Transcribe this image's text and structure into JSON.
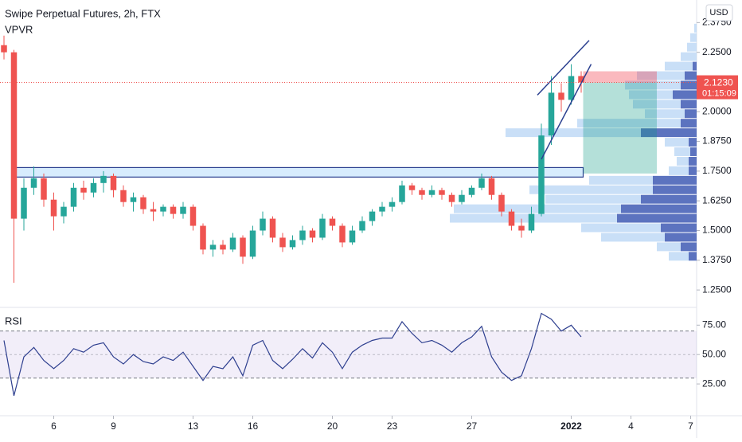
{
  "chart_data": [
    {
      "type": "candlestick",
      "title": "Swipe Perpetual Futures, 2h, FTX",
      "subtitle": "VPVR",
      "currency": "USD",
      "up_color": "#26a69a",
      "down_color": "#ef5350",
      "x": [
        3.5,
        4,
        4.5,
        5,
        5.5,
        6,
        6.5,
        7,
        7.5,
        8,
        8.5,
        9,
        9.5,
        10,
        10.5,
        11,
        11.5,
        12,
        12.5,
        13,
        13.5,
        14,
        14.5,
        15,
        15.5,
        16,
        16.5,
        17,
        17.5,
        18,
        18.5,
        19,
        19.5,
        20,
        20.5,
        21,
        21.5,
        22,
        22.5,
        23,
        23.5,
        24,
        24.5,
        25,
        25.5,
        26,
        26.5,
        27,
        27.5,
        28,
        28.5,
        29,
        29.5,
        30,
        30.5,
        31,
        31.5,
        32,
        32.5
      ],
      "candles": [
        [
          2.28,
          2.32,
          2.22,
          2.25
        ],
        [
          2.25,
          2.26,
          1.28,
          1.55
        ],
        [
          1.55,
          1.72,
          1.5,
          1.68
        ],
        [
          1.68,
          1.77,
          1.65,
          1.72
        ],
        [
          1.72,
          1.74,
          1.6,
          1.63
        ],
        [
          1.63,
          1.66,
          1.5,
          1.56
        ],
        [
          1.56,
          1.62,
          1.53,
          1.6
        ],
        [
          1.6,
          1.7,
          1.58,
          1.68
        ],
        [
          1.68,
          1.71,
          1.63,
          1.66
        ],
        [
          1.66,
          1.72,
          1.64,
          1.7
        ],
        [
          1.7,
          1.75,
          1.66,
          1.73
        ],
        [
          1.73,
          1.74,
          1.64,
          1.67
        ],
        [
          1.67,
          1.69,
          1.6,
          1.62
        ],
        [
          1.62,
          1.66,
          1.58,
          1.64
        ],
        [
          1.64,
          1.65,
          1.57,
          1.59
        ],
        [
          1.59,
          1.62,
          1.54,
          1.58
        ],
        [
          1.58,
          1.61,
          1.56,
          1.6
        ],
        [
          1.6,
          1.61,
          1.55,
          1.57
        ],
        [
          1.57,
          1.62,
          1.55,
          1.6
        ],
        [
          1.6,
          1.61,
          1.5,
          1.52
        ],
        [
          1.52,
          1.53,
          1.4,
          1.42
        ],
        [
          1.42,
          1.46,
          1.39,
          1.44
        ],
        [
          1.44,
          1.46,
          1.4,
          1.42
        ],
        [
          1.42,
          1.49,
          1.41,
          1.47
        ],
        [
          1.47,
          1.48,
          1.36,
          1.39
        ],
        [
          1.39,
          1.52,
          1.38,
          1.5
        ],
        [
          1.5,
          1.58,
          1.48,
          1.55
        ],
        [
          1.55,
          1.56,
          1.45,
          1.47
        ],
        [
          1.47,
          1.49,
          1.41,
          1.43
        ],
        [
          1.43,
          1.48,
          1.42,
          1.46
        ],
        [
          1.46,
          1.52,
          1.44,
          1.5
        ],
        [
          1.5,
          1.51,
          1.45,
          1.47
        ],
        [
          1.47,
          1.57,
          1.46,
          1.55
        ],
        [
          1.55,
          1.56,
          1.5,
          1.52
        ],
        [
          1.52,
          1.53,
          1.43,
          1.45
        ],
        [
          1.45,
          1.52,
          1.44,
          1.5
        ],
        [
          1.5,
          1.56,
          1.49,
          1.54
        ],
        [
          1.54,
          1.59,
          1.52,
          1.58
        ],
        [
          1.58,
          1.62,
          1.56,
          1.6
        ],
        [
          1.6,
          1.64,
          1.58,
          1.62
        ],
        [
          1.62,
          1.71,
          1.61,
          1.69
        ],
        [
          1.69,
          1.7,
          1.65,
          1.67
        ],
        [
          1.67,
          1.68,
          1.63,
          1.65
        ],
        [
          1.65,
          1.69,
          1.64,
          1.67
        ],
        [
          1.67,
          1.68,
          1.63,
          1.65
        ],
        [
          1.65,
          1.66,
          1.6,
          1.62
        ],
        [
          1.62,
          1.67,
          1.61,
          1.65
        ],
        [
          1.65,
          1.69,
          1.64,
          1.68
        ],
        [
          1.68,
          1.74,
          1.67,
          1.72
        ],
        [
          1.72,
          1.73,
          1.63,
          1.65
        ],
        [
          1.65,
          1.66,
          1.56,
          1.58
        ],
        [
          1.58,
          1.59,
          1.5,
          1.52
        ],
        [
          1.52,
          1.55,
          1.47,
          1.5
        ],
        [
          1.5,
          1.6,
          1.49,
          1.57
        ],
        [
          1.57,
          1.95,
          1.56,
          1.9
        ],
        [
          1.9,
          2.15,
          1.86,
          2.08
        ],
        [
          2.08,
          2.12,
          2.0,
          2.05
        ],
        [
          2.05,
          2.2,
          2.03,
          2.15
        ],
        [
          2.15,
          2.17,
          2.08,
          2.123
        ]
      ],
      "xlim": [
        3.3,
        38.3
      ],
      "xticks": [
        6,
        9,
        13,
        16,
        20,
        23,
        27,
        {
          "value": 32,
          "label": "2022"
        },
        {
          "value": 35,
          "label": "4"
        },
        {
          "value": 38,
          "label": "7"
        }
      ],
      "ylim": [
        1.18,
        2.47
      ],
      "yticks": [
        {
          "value": 1.25,
          "label": "1.2500"
        },
        {
          "value": 1.375,
          "label": "1.3750"
        },
        {
          "value": 1.5,
          "label": "1.5000"
        },
        {
          "value": 1.625,
          "label": "1.6250"
        },
        {
          "value": 1.75,
          "label": "1.7500"
        },
        {
          "value": 1.875,
          "label": "1.8750"
        },
        {
          "value": 2,
          "label": "2.0000"
        },
        {
          "value": 2.25,
          "label": "2.2500"
        },
        {
          "value": 2.375,
          "label": "2.3750"
        }
      ],
      "last_price": {
        "value": 2.123,
        "label": "2.1230"
      },
      "countdown": "01:15:09",
      "zone": {
        "x": [
          3.9,
          32.6
        ],
        "y": [
          1.725,
          1.765
        ]
      },
      "trendlines": [
        {
          "x": [
            30.3,
            32.9
          ],
          "y": [
            2.07,
            2.3
          ]
        },
        {
          "x": [
            30.5,
            33
          ],
          "y": [
            1.8,
            2.2
          ]
        }
      ],
      "position": {
        "x": [
          32.6,
          36.3
        ],
        "entry": 2.123,
        "stop": 2.17,
        "target": 1.74
      },
      "volume_profile": {
        "up_color": "#bbd7f5",
        "down_color": "#4a64b8",
        "levels": [
          2.35,
          2.31,
          2.27,
          2.23,
          2.19,
          2.15,
          2.11,
          2.07,
          2.03,
          1.99,
          1.95,
          1.91,
          1.87,
          1.83,
          1.79,
          1.75,
          1.71,
          1.67,
          1.63,
          1.59,
          1.55,
          1.51,
          1.47,
          1.43,
          1.39
        ],
        "up": [
          3,
          8,
          12,
          20,
          35,
          60,
          70,
          55,
          60,
          50,
          130,
          170,
          30,
          20,
          15,
          25,
          80,
          155,
          120,
          210,
          210,
          100,
          80,
          30,
          25
        ],
        "down": [
          0,
          0,
          0,
          0,
          5,
          15,
          20,
          30,
          20,
          15,
          20,
          70,
          10,
          8,
          10,
          10,
          55,
          55,
          70,
          95,
          100,
          45,
          40,
          20,
          10
        ]
      }
    },
    {
      "type": "line",
      "title": "RSI",
      "color": "#2e3f8f",
      "x": [
        3.5,
        4,
        4.5,
        5,
        5.5,
        6,
        6.5,
        7,
        7.5,
        8,
        8.5,
        9,
        9.5,
        10,
        10.5,
        11,
        11.5,
        12,
        12.5,
        13,
        13.5,
        14,
        14.5,
        15,
        15.5,
        16,
        16.5,
        17,
        17.5,
        18,
        18.5,
        19,
        19.5,
        20,
        20.5,
        21,
        21.5,
        22,
        22.5,
        23,
        23.5,
        24,
        24.5,
        25,
        25.5,
        26,
        26.5,
        27,
        27.5,
        28,
        28.5,
        29,
        29.5,
        30,
        30.5,
        31,
        31.5,
        32,
        32.5
      ],
      "values": [
        62,
        15,
        48,
        56,
        45,
        38,
        45,
        55,
        52,
        58,
        60,
        48,
        42,
        50,
        44,
        42,
        48,
        45,
        52,
        40,
        28,
        40,
        38,
        48,
        32,
        58,
        62,
        45,
        38,
        46,
        55,
        47,
        60,
        52,
        38,
        52,
        58,
        62,
        64,
        64,
        78,
        68,
        60,
        62,
        58,
        52,
        60,
        65,
        74,
        48,
        35,
        28,
        32,
        55,
        85,
        80,
        70,
        75,
        65
      ],
      "ylim": [
        0,
        84
      ],
      "band": [
        30,
        70
      ],
      "yticks": [
        {
          "value": 25,
          "label": "25.00"
        },
        {
          "value": 50,
          "label": "50.00"
        },
        {
          "value": 75,
          "label": "75.00"
        }
      ]
    }
  ]
}
